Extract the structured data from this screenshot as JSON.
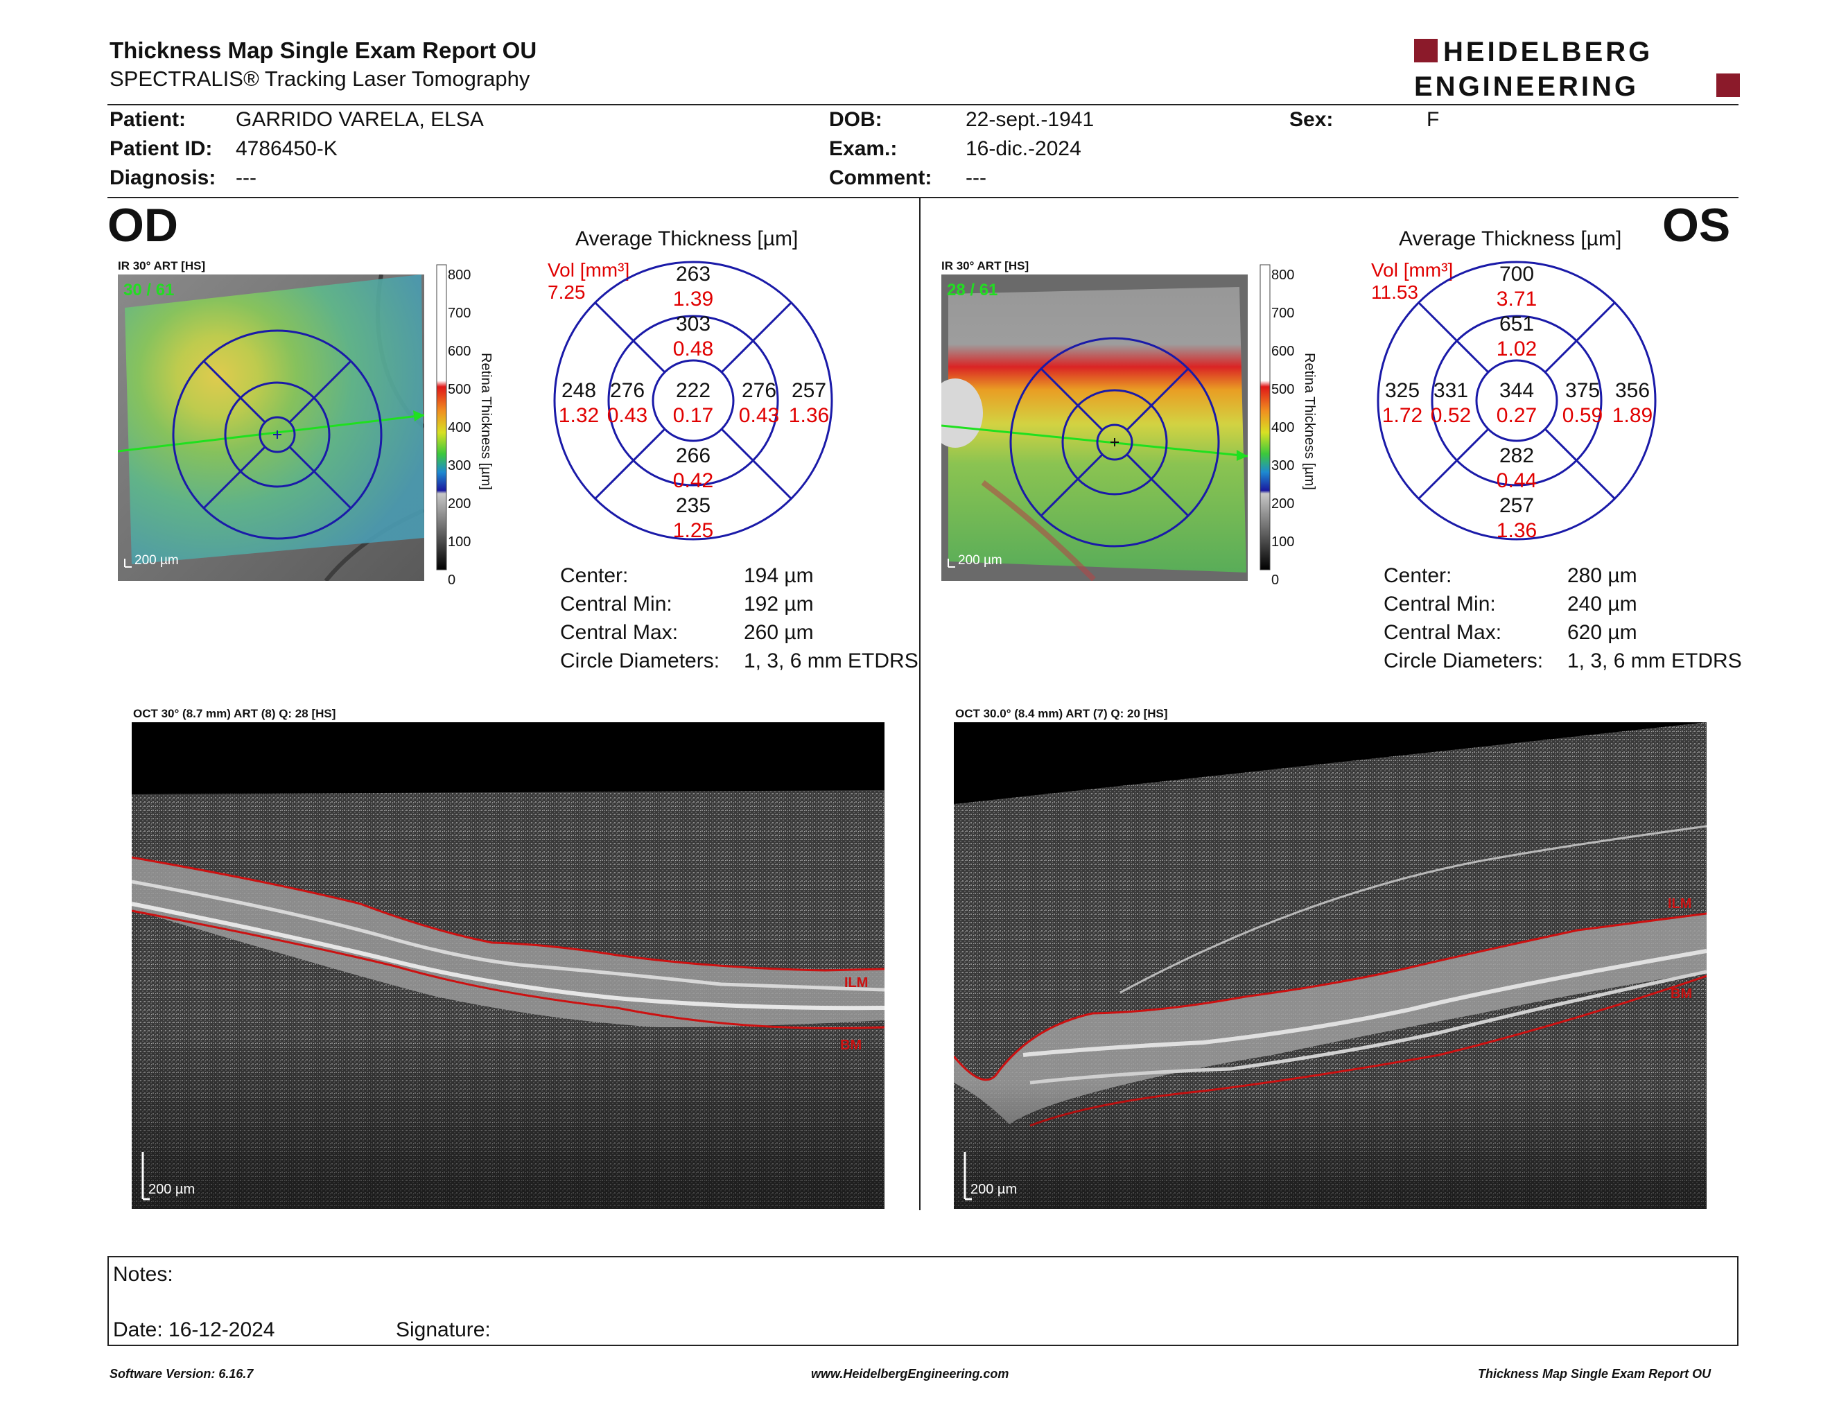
{
  "header": {
    "title": "Thickness Map Single Exam Report OU",
    "subtitle": "SPECTRALIS® Tracking Laser Tomography",
    "logo_line1": "HEIDELBERG",
    "logo_line2": "ENGINEERING"
  },
  "patient": {
    "patient_label": "Patient:",
    "patient_value": "GARRIDO VARELA, ELSA",
    "id_label": "Patient ID:",
    "id_value": "4786450-K",
    "diagnosis_label": "Diagnosis:",
    "diagnosis_value": "---",
    "dob_label": "DOB:",
    "dob_value": "22-sept.-1941",
    "exam_label": "Exam.:",
    "exam_value": "16-dic.-2024",
    "comment_label": "Comment:",
    "comment_value": "---",
    "sex_label": "Sex:",
    "sex_value": "F"
  },
  "od": {
    "eye": "OD",
    "ir_caption": "IR 30° ART [HS]",
    "ir_counter": "30 / 61",
    "scale_bar": "200 µm",
    "colorbar_ticks": [
      "800",
      "700",
      "600",
      "500",
      "400",
      "300",
      "200",
      "100",
      "0"
    ],
    "colorbar_label": "Retina Thickness [µm]",
    "avg_title": "Average Thickness [µm]",
    "vol_label": "Vol [mm³]",
    "vol_value": "7.25",
    "grid": {
      "outer_top": {
        "t": "263",
        "v": "1.39"
      },
      "inner_top": {
        "t": "303",
        "v": "0.48"
      },
      "outer_left": {
        "t": "248",
        "v": "1.32"
      },
      "inner_left": {
        "t": "276",
        "v": "0.43"
      },
      "center": {
        "t": "222",
        "v": "0.17"
      },
      "inner_right": {
        "t": "276",
        "v": "0.43"
      },
      "outer_right": {
        "t": "257",
        "v": "1.36"
      },
      "inner_bottom": {
        "t": "266",
        "v": "0.42"
      },
      "outer_bottom": {
        "t": "235",
        "v": "1.25"
      }
    },
    "stats": [
      {
        "label": "Center:",
        "value": "194 µm"
      },
      {
        "label": "Central Min:",
        "value": "192 µm"
      },
      {
        "label": "Central Max:",
        "value": "260 µm"
      },
      {
        "label": "Circle Diameters:",
        "value": "1, 3, 6 mm ETDRS"
      }
    ],
    "oct_caption": "OCT 30° (8.7 mm) ART (8) Q: 28 [HS]",
    "ilm": "ILM",
    "bm": "BM"
  },
  "os": {
    "eye": "OS",
    "ir_caption": "IR 30° ART [HS]",
    "ir_counter": "28 / 61",
    "scale_bar": "200 µm",
    "colorbar_ticks": [
      "800",
      "700",
      "600",
      "500",
      "400",
      "300",
      "200",
      "100",
      "0"
    ],
    "colorbar_label": "Retina Thickness [µm]",
    "avg_title": "Average Thickness [µm]",
    "vol_label": "Vol [mm³]",
    "vol_value": "11.53",
    "grid": {
      "outer_top": {
        "t": "700",
        "v": "3.71"
      },
      "inner_top": {
        "t": "651",
        "v": "1.02"
      },
      "outer_left": {
        "t": "325",
        "v": "1.72"
      },
      "inner_left": {
        "t": "331",
        "v": "0.52"
      },
      "center": {
        "t": "344",
        "v": "0.27"
      },
      "inner_right": {
        "t": "375",
        "v": "0.59"
      },
      "outer_right": {
        "t": "356",
        "v": "1.89"
      },
      "inner_bottom": {
        "t": "282",
        "v": "0.44"
      },
      "outer_bottom": {
        "t": "257",
        "v": "1.36"
      }
    },
    "stats": [
      {
        "label": "Center:",
        "value": "280 µm"
      },
      {
        "label": "Central Min:",
        "value": "240 µm"
      },
      {
        "label": "Central Max:",
        "value": "620 µm"
      },
      {
        "label": "Circle Diameters:",
        "value": "1, 3, 6 mm ETDRS"
      }
    ],
    "oct_caption": "OCT 30.0° (8.4 mm) ART (7) Q: 20 [HS]",
    "ilm": "ILM",
    "bm": "BM"
  },
  "notes": {
    "notes_label": "Notes:",
    "date_label": "Date: 16-12-2024",
    "signature_label": "Signature:"
  },
  "footer": {
    "left": "Software Version: 6.16.7",
    "center": "www.HeidelbergEngineering.com",
    "right": "Thickness Map Single Exam Report OU"
  },
  "colors": {
    "grid_blue": "#1a1aa8",
    "value_red": "#e00000",
    "logo_red": "#8b1a2a",
    "ilm_line": "#cc1111"
  }
}
